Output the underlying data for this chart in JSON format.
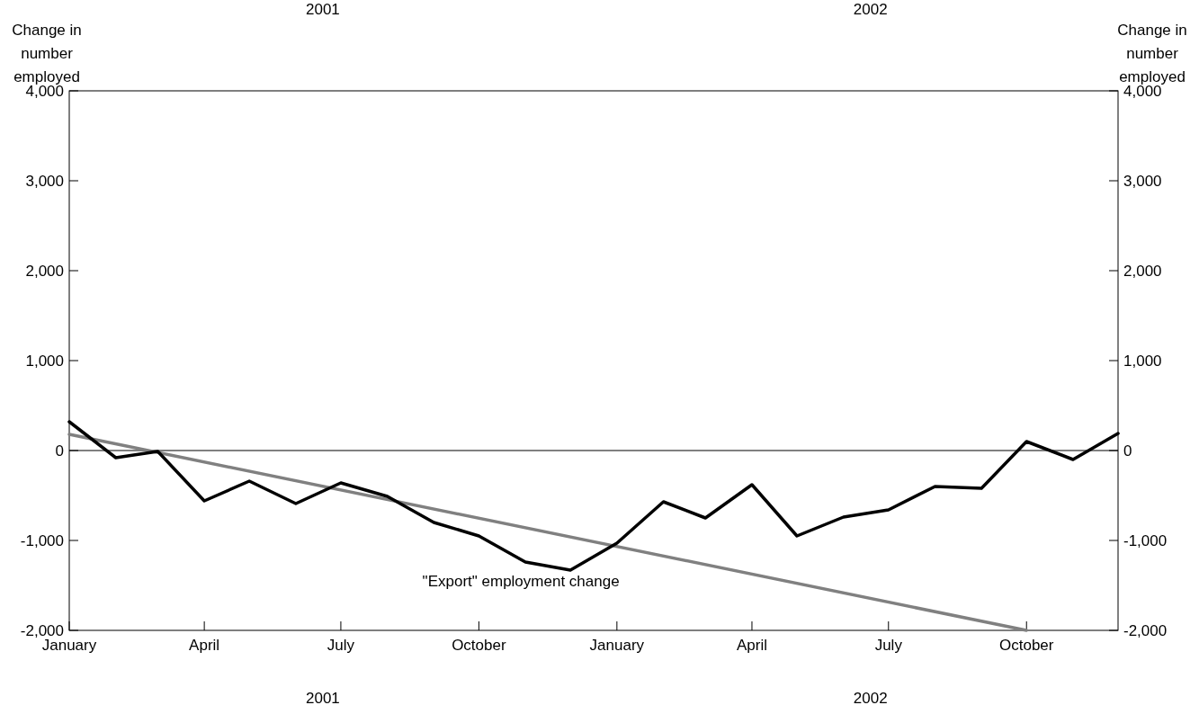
{
  "chart_data": {
    "type": "line",
    "ylabel": "Change in number employed",
    "y2label": "Change in number employed",
    "x": [
      "2001-01",
      "2001-02",
      "2001-03",
      "2001-04",
      "2001-05",
      "2001-06",
      "2001-07",
      "2001-08",
      "2001-09",
      "2001-10",
      "2001-11",
      "2001-12",
      "2002-01",
      "2002-02",
      "2002-03",
      "2002-04",
      "2002-05",
      "2002-06",
      "2002-07",
      "2002-08",
      "2002-09",
      "2002-10",
      "2002-11",
      "2002-12"
    ],
    "series": [
      {
        "color": "#000000",
        "values": [
          320,
          -80,
          -10,
          -560,
          -340,
          -590,
          -360,
          -510,
          -800,
          -950,
          -1240,
          -1330,
          -1030,
          -570,
          -750,
          -380,
          -950,
          -740,
          -660,
          -400,
          -420,
          100,
          -100,
          190
        ]
      },
      {
        "name": "\"Export\" employment change",
        "color": "#808080",
        "x": [
          "2001-01",
          "2002-10"
        ],
        "values": [
          180,
          -2000
        ]
      }
    ],
    "xlim": [
      "2001-01",
      "2002-12"
    ],
    "xticks": [
      {
        "value": "2001-01",
        "label": "January"
      },
      {
        "value": "2001-04",
        "label": "April"
      },
      {
        "value": "2001-07",
        "label": "July"
      },
      {
        "value": "2001-10",
        "label": "October"
      },
      {
        "value": "2002-01",
        "label": "January"
      },
      {
        "value": "2002-04",
        "label": "April"
      },
      {
        "value": "2002-07",
        "label": "July"
      },
      {
        "value": "2002-10",
        "label": "October"
      }
    ],
    "ylim": [
      -2000,
      4000
    ],
    "yticks": [
      {
        "value": -2000,
        "label": "-2,000"
      },
      {
        "value": -1000,
        "label": "-1,000"
      },
      {
        "value": 0,
        "label": "0"
      },
      {
        "value": 1000,
        "label": "1,000"
      },
      {
        "value": 2000,
        "label": "2,000"
      },
      {
        "value": 3000,
        "label": "3,000"
      },
      {
        "value": 4000,
        "label": "4,000"
      }
    ],
    "y2lim": [
      -2000,
      4000
    ],
    "y2ticks": [
      {
        "value": -2000,
        "label": "-2,000"
      },
      {
        "value": -1000,
        "label": "-1,000"
      },
      {
        "value": 0,
        "label": "0"
      },
      {
        "value": 1000,
        "label": "1,000"
      },
      {
        "value": 2000,
        "label": "2,000"
      },
      {
        "value": 3000,
        "label": "3,000"
      },
      {
        "value": 4000,
        "label": "4,000"
      }
    ],
    "ref_lines": [
      {
        "axis": "y",
        "value": 0,
        "color": "#000000"
      }
    ],
    "annotations": [
      "2001",
      "2002",
      "2001",
      "2002"
    ],
    "grid": false,
    "marker": "none",
    "line_style": "solid"
  }
}
